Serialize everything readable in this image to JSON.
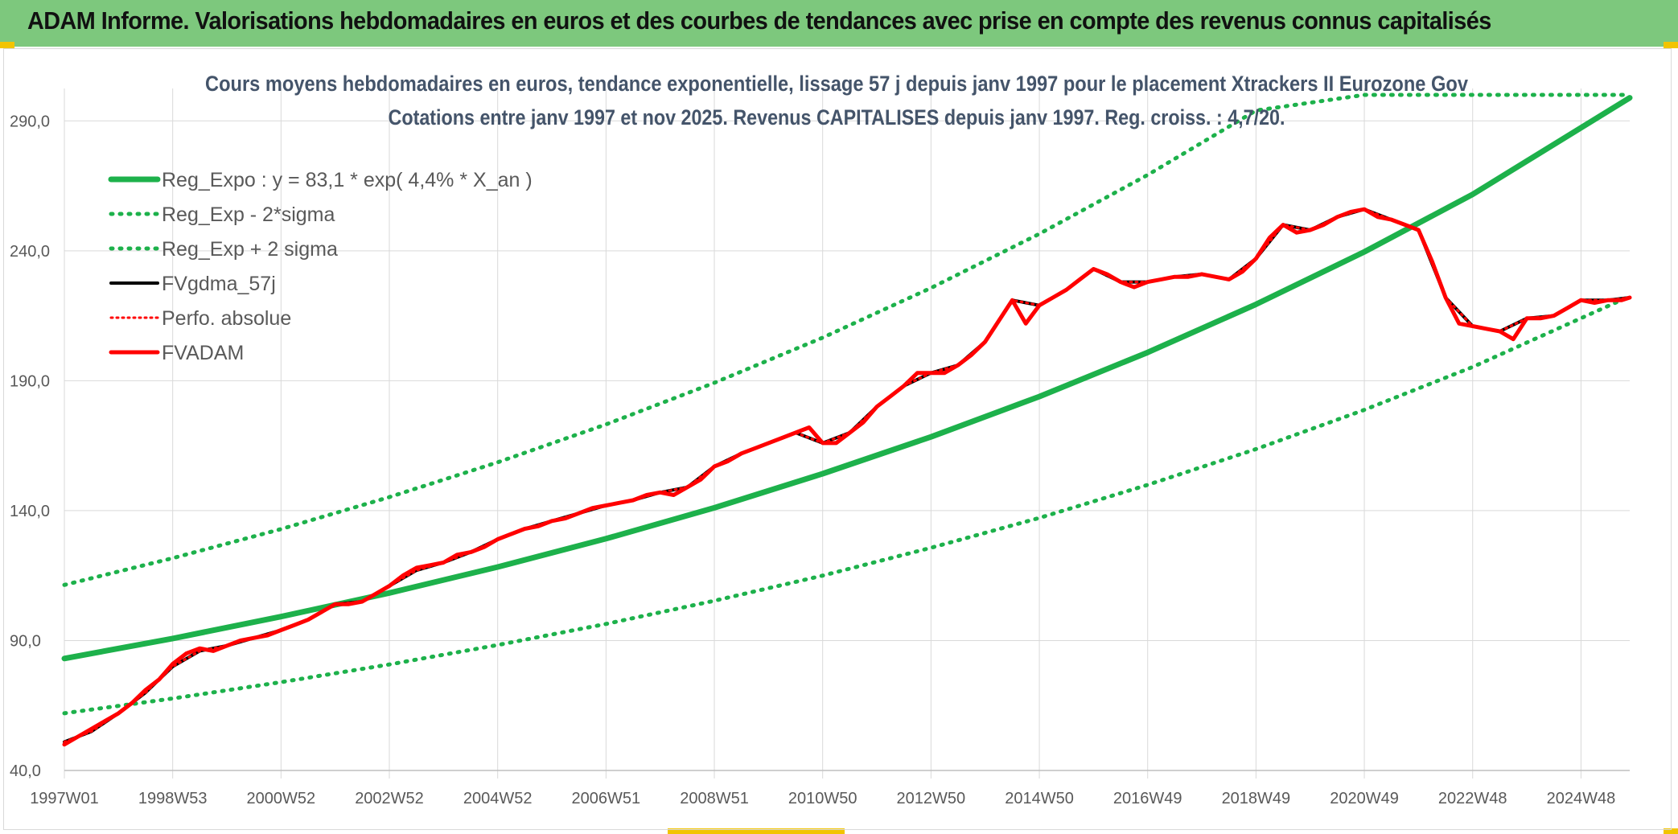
{
  "banner": {
    "title": "ADAM Informe. Valorisations hebdomadaires en euros et des courbes de tendances avec prise en compte des revenus connus capitalisés"
  },
  "colors": {
    "banner_bg": "#7dc87d",
    "trend_green": "#1db14b",
    "price_red": "#ff0000",
    "smooth_black": "#000000",
    "grid": "#d9d9d9",
    "subtitle": "#44546a"
  },
  "chart_data": {
    "type": "line",
    "title": "Cours moyens hebdomadaires en euros, tendance exponentielle, lissage 57 j depuis janv 1997 pour le placement Xtrackers II Eurozone Gov",
    "subtitle": "Cotations entre janv 1997 et nov 2025. Revenus CAPITALISES depuis janv 1997. Reg. croiss. : 4,7/20.",
    "xlabel": "",
    "ylabel": "",
    "ylim": [
      40,
      300
    ],
    "xlim": [
      1997.0,
      2025.9
    ],
    "y_ticks": [
      40,
      90,
      140,
      190,
      240,
      290
    ],
    "y_tick_labels": [
      "40,0",
      "90,0",
      "140,0",
      "190,0",
      "240,0",
      "290,0"
    ],
    "x_ticks": [
      1997.0,
      1999.0,
      2001.0,
      2003.0,
      2005.0,
      2007.0,
      2009.0,
      2011.0,
      2013.0,
      2015.0,
      2017.0,
      2019.0,
      2021.0,
      2023.0,
      2025.0
    ],
    "x_tick_labels": [
      "1997W01",
      "1998W53",
      "2000W52",
      "2002W52",
      "2004W52",
      "2006W51",
      "2008W51",
      "2010W50",
      "2012W50",
      "2014W50",
      "2016W49",
      "2018W49",
      "2020W49",
      "2022W48",
      "2024W48"
    ],
    "grid": true,
    "legend_position": "top-left",
    "series": [
      {
        "name": "Reg_Expo : y = 83,1 * exp( 4,4% *  X_an )",
        "style": "solid",
        "color": "#1db14b",
        "x": [
          1997,
          1999,
          2001,
          2003,
          2005,
          2007,
          2009,
          2011,
          2013,
          2015,
          2017,
          2019,
          2021,
          2023,
          2025.9
        ],
        "values": [
          83.1,
          90.8,
          99.2,
          108.3,
          118.3,
          129.2,
          141.1,
          154.2,
          168.4,
          183.9,
          200.9,
          219.4,
          239.6,
          261.7,
          298.9
        ]
      },
      {
        "name": "Reg_Exp - 2*sigma",
        "style": "dotted",
        "color": "#1db14b",
        "x": [
          1997,
          1999,
          2001,
          2003,
          2005,
          2007,
          2009,
          2011,
          2013,
          2015,
          2017,
          2019,
          2021,
          2023,
          2025.9
        ],
        "values": [
          62.0,
          67.7,
          74.0,
          80.8,
          88.3,
          96.4,
          105.3,
          115.0,
          125.7,
          137.2,
          149.9,
          163.7,
          178.8,
          195.3,
          222.5
        ]
      },
      {
        "name": "Reg_Exp + 2 sigma",
        "style": "dotted",
        "color": "#1db14b",
        "x": [
          1997,
          1999,
          2001,
          2003,
          2005,
          2007,
          2009,
          2011,
          2013,
          2015,
          2017,
          2019,
          2021,
          2023,
          2025.9
        ],
        "values": [
          111.4,
          121.7,
          132.9,
          145.2,
          158.6,
          173.2,
          189.2,
          206.6,
          225.7,
          246.5,
          269.2,
          294.0,
          300.0,
          300.0,
          300.0
        ]
      },
      {
        "name": "FVgdma_57j",
        "style": "solid",
        "color": "#000000",
        "x": [
          1997.0,
          1997.5,
          1998.0,
          1998.5,
          1999.0,
          1999.5,
          2000.0,
          2000.5,
          2001.0,
          2001.5,
          2002.0,
          2002.5,
          2003.0,
          2003.5,
          2004.0,
          2004.5,
          2005.0,
          2005.5,
          2006.0,
          2006.5,
          2007.0,
          2007.5,
          2008.0,
          2008.5,
          2009.0,
          2009.5,
          2010.0,
          2010.5,
          2011.0,
          2011.5,
          2012.0,
          2012.5,
          2013.0,
          2013.5,
          2014.0,
          2014.5,
          2015.0,
          2015.5,
          2016.0,
          2016.5,
          2017.0,
          2017.5,
          2018.0,
          2018.5,
          2019.0,
          2019.5,
          2020.0,
          2020.5,
          2021.0,
          2021.5,
          2022.0,
          2022.5,
          2023.0,
          2023.5,
          2024.0,
          2024.5,
          2025.0,
          2025.5,
          2025.9
        ],
        "values": [
          51.0,
          55.0,
          62.0,
          70.0,
          80.0,
          86.0,
          88.0,
          91.0,
          94.0,
          98.0,
          104.0,
          105.0,
          111.0,
          117.0,
          120.0,
          124.0,
          129.0,
          133.0,
          136.0,
          139.0,
          142.0,
          144.0,
          147.0,
          149.0,
          157.0,
          162.0,
          166.0,
          170.0,
          166.0,
          170.0,
          180.0,
          188.0,
          193.0,
          196.0,
          205.0,
          221.0,
          219.0,
          225.0,
          233.0,
          228.0,
          228.0,
          230.0,
          231.0,
          229.0,
          237.0,
          250.0,
          248.0,
          253.0,
          256.0,
          252.0,
          248.0,
          222.0,
          211.0,
          209.0,
          214.0,
          215.0,
          221.0,
          221.0,
          222.0
        ]
      },
      {
        "name": "Perfo. absolue",
        "style": "dotted",
        "color": "#ff0000",
        "x": [
          1997.0,
          1997.5,
          1998.0,
          1998.5,
          1999.0,
          1999.5,
          2000.0,
          2000.5,
          2001.0,
          2001.5,
          2002.0,
          2002.5,
          2003.0,
          2003.5,
          2004.0,
          2004.5,
          2005.0,
          2005.5,
          2006.0,
          2006.5,
          2007.0,
          2007.5,
          2008.0,
          2008.5,
          2009.0,
          2009.5,
          2010.0,
          2010.5,
          2011.0,
          2011.5,
          2012.0,
          2012.5,
          2013.0,
          2013.5,
          2014.0,
          2014.5,
          2015.0,
          2015.5,
          2016.0,
          2016.5,
          2017.0,
          2017.5,
          2018.0,
          2018.5,
          2019.0,
          2019.5,
          2020.0,
          2020.5,
          2021.0,
          2021.5,
          2022.0,
          2022.5,
          2023.0,
          2023.5,
          2024.0,
          2024.5,
          2025.0,
          2025.5,
          2025.9
        ],
        "values": [
          51.0,
          55.0,
          62.0,
          70.0,
          80.0,
          86.0,
          88.0,
          91.0,
          94.0,
          98.0,
          104.0,
          105.0,
          111.0,
          117.0,
          120.0,
          124.0,
          129.0,
          133.0,
          136.0,
          139.0,
          142.0,
          144.0,
          147.0,
          149.0,
          157.0,
          162.0,
          166.0,
          170.0,
          166.0,
          170.0,
          180.0,
          188.0,
          193.0,
          196.0,
          205.0,
          221.0,
          219.0,
          225.0,
          233.0,
          228.0,
          228.0,
          230.0,
          231.0,
          229.0,
          237.0,
          250.0,
          248.0,
          253.0,
          256.0,
          252.0,
          248.0,
          222.0,
          211.0,
          209.0,
          214.0,
          215.0,
          221.0,
          221.0,
          222.0
        ]
      },
      {
        "name": "FVADAM",
        "style": "solid",
        "color": "#ff0000",
        "x": [
          1997.0,
          1997.25,
          1997.5,
          1997.75,
          1998.0,
          1998.25,
          1998.5,
          1998.75,
          1999.0,
          1999.25,
          1999.5,
          1999.75,
          2000.0,
          2000.25,
          2000.5,
          2000.75,
          2001.0,
          2001.25,
          2001.5,
          2001.75,
          2002.0,
          2002.25,
          2002.5,
          2002.75,
          2003.0,
          2003.25,
          2003.5,
          2003.75,
          2004.0,
          2004.25,
          2004.5,
          2004.75,
          2005.0,
          2005.25,
          2005.5,
          2005.75,
          2006.0,
          2006.25,
          2006.5,
          2006.75,
          2007.0,
          2007.25,
          2007.5,
          2007.75,
          2008.0,
          2008.25,
          2008.5,
          2008.75,
          2009.0,
          2009.25,
          2009.5,
          2009.75,
          2010.0,
          2010.25,
          2010.5,
          2010.75,
          2011.0,
          2011.25,
          2011.5,
          2011.75,
          2012.0,
          2012.25,
          2012.5,
          2012.75,
          2013.0,
          2013.25,
          2013.5,
          2013.75,
          2014.0,
          2014.25,
          2014.5,
          2014.75,
          2015.0,
          2015.25,
          2015.5,
          2015.75,
          2016.0,
          2016.25,
          2016.5,
          2016.75,
          2017.0,
          2017.25,
          2017.5,
          2017.75,
          2018.0,
          2018.25,
          2018.5,
          2018.75,
          2019.0,
          2019.25,
          2019.5,
          2019.75,
          2020.0,
          2020.25,
          2020.5,
          2020.75,
          2021.0,
          2021.25,
          2021.5,
          2021.75,
          2022.0,
          2022.25,
          2022.5,
          2022.75,
          2023.0,
          2023.25,
          2023.5,
          2023.75,
          2024.0,
          2024.25,
          2024.5,
          2024.75,
          2025.0,
          2025.25,
          2025.5,
          2025.75,
          2025.9
        ],
        "values": [
          50.0,
          53.0,
          56.0,
          59.0,
          62.0,
          66.0,
          71.0,
          75.0,
          81.0,
          85.0,
          87.0,
          86.0,
          88.0,
          90.0,
          91.0,
          92.0,
          94.0,
          96.0,
          98.0,
          101.0,
          104.0,
          104.0,
          105.0,
          108.0,
          111.0,
          115.0,
          118.0,
          119.0,
          120.0,
          123.0,
          124.0,
          126.0,
          129.0,
          131.0,
          133.0,
          134.0,
          136.0,
          137.0,
          139.0,
          141.0,
          142.0,
          143.0,
          144.0,
          146.0,
          147.0,
          146.0,
          149.0,
          152.0,
          157.0,
          159.0,
          162.0,
          164.0,
          166.0,
          168.0,
          170.0,
          172.0,
          166.0,
          166.0,
          170.0,
          174.0,
          180.0,
          184.0,
          188.0,
          193.0,
          193.0,
          193.0,
          196.0,
          200.0,
          205.0,
          213.0,
          221.0,
          212.0,
          219.0,
          222.0,
          225.0,
          229.0,
          233.0,
          231.0,
          228.0,
          226.0,
          228.0,
          229.0,
          230.0,
          230.0,
          231.0,
          230.0,
          229.0,
          232.0,
          237.0,
          245.0,
          250.0,
          247.0,
          248.0,
          250.0,
          253.0,
          255.0,
          256.0,
          253.0,
          252.0,
          250.0,
          248.0,
          236.0,
          222.0,
          212.0,
          211.0,
          210.0,
          209.0,
          206.0,
          214.0,
          214.0,
          215.0,
          218.0,
          221.0,
          220.0,
          221.0,
          221.0,
          222.0
        ]
      }
    ]
  }
}
